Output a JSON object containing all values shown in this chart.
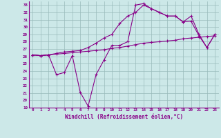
{
  "xlabel": "Windchill (Refroidissement éolien,°C)",
  "xlim": [
    -0.5,
    23.5
  ],
  "ylim": [
    19,
    33.5
  ],
  "xticks": [
    0,
    1,
    2,
    3,
    4,
    5,
    6,
    7,
    8,
    9,
    10,
    11,
    12,
    13,
    14,
    15,
    16,
    17,
    18,
    19,
    20,
    21,
    22,
    23
  ],
  "yticks": [
    19,
    20,
    21,
    22,
    23,
    24,
    25,
    26,
    27,
    28,
    29,
    30,
    31,
    32,
    33
  ],
  "bg_color": "#cce8e8",
  "line_color": "#880088",
  "grid_color": "#99bbbb",
  "lines": [
    {
      "x": [
        0,
        1,
        2,
        3,
        4,
        5,
        6,
        7,
        8,
        9,
        10,
        11,
        12,
        13,
        14,
        15,
        16,
        17,
        18,
        19,
        20,
        21,
        22,
        23
      ],
      "y": [
        26.2,
        26.1,
        26.2,
        26.3,
        26.4,
        26.5,
        26.6,
        26.7,
        26.8,
        26.9,
        27.1,
        27.2,
        27.4,
        27.6,
        27.8,
        27.9,
        28.0,
        28.1,
        28.2,
        28.4,
        28.5,
        28.6,
        28.7,
        28.8
      ]
    },
    {
      "x": [
        0,
        1,
        2,
        3,
        4,
        5,
        6,
        7,
        8,
        9,
        10,
        11,
        12,
        13,
        14,
        15,
        16,
        17,
        18,
        19,
        20,
        21,
        22,
        23
      ],
      "y": [
        26.2,
        26.1,
        26.2,
        26.4,
        26.6,
        26.7,
        26.8,
        27.2,
        27.8,
        28.5,
        29.0,
        30.5,
        31.5,
        32.0,
        33.0,
        32.5,
        32.0,
        31.5,
        31.5,
        30.7,
        30.8,
        28.8,
        27.2,
        29.0
      ]
    },
    {
      "x": [
        0,
        1,
        2,
        3,
        4,
        5,
        6,
        7,
        8,
        9,
        10,
        11,
        12,
        13,
        14,
        15,
        16,
        17,
        18,
        19,
        20,
        21,
        22,
        23
      ],
      "y": [
        26.2,
        26.1,
        26.2,
        23.5,
        23.8,
        26.1,
        21.1,
        19.2,
        23.5,
        25.5,
        27.5,
        27.5,
        28.0,
        33.0,
        33.2,
        32.5,
        32.0,
        31.5,
        31.5,
        30.7,
        31.5,
        29.0,
        27.2,
        29.0
      ]
    }
  ]
}
